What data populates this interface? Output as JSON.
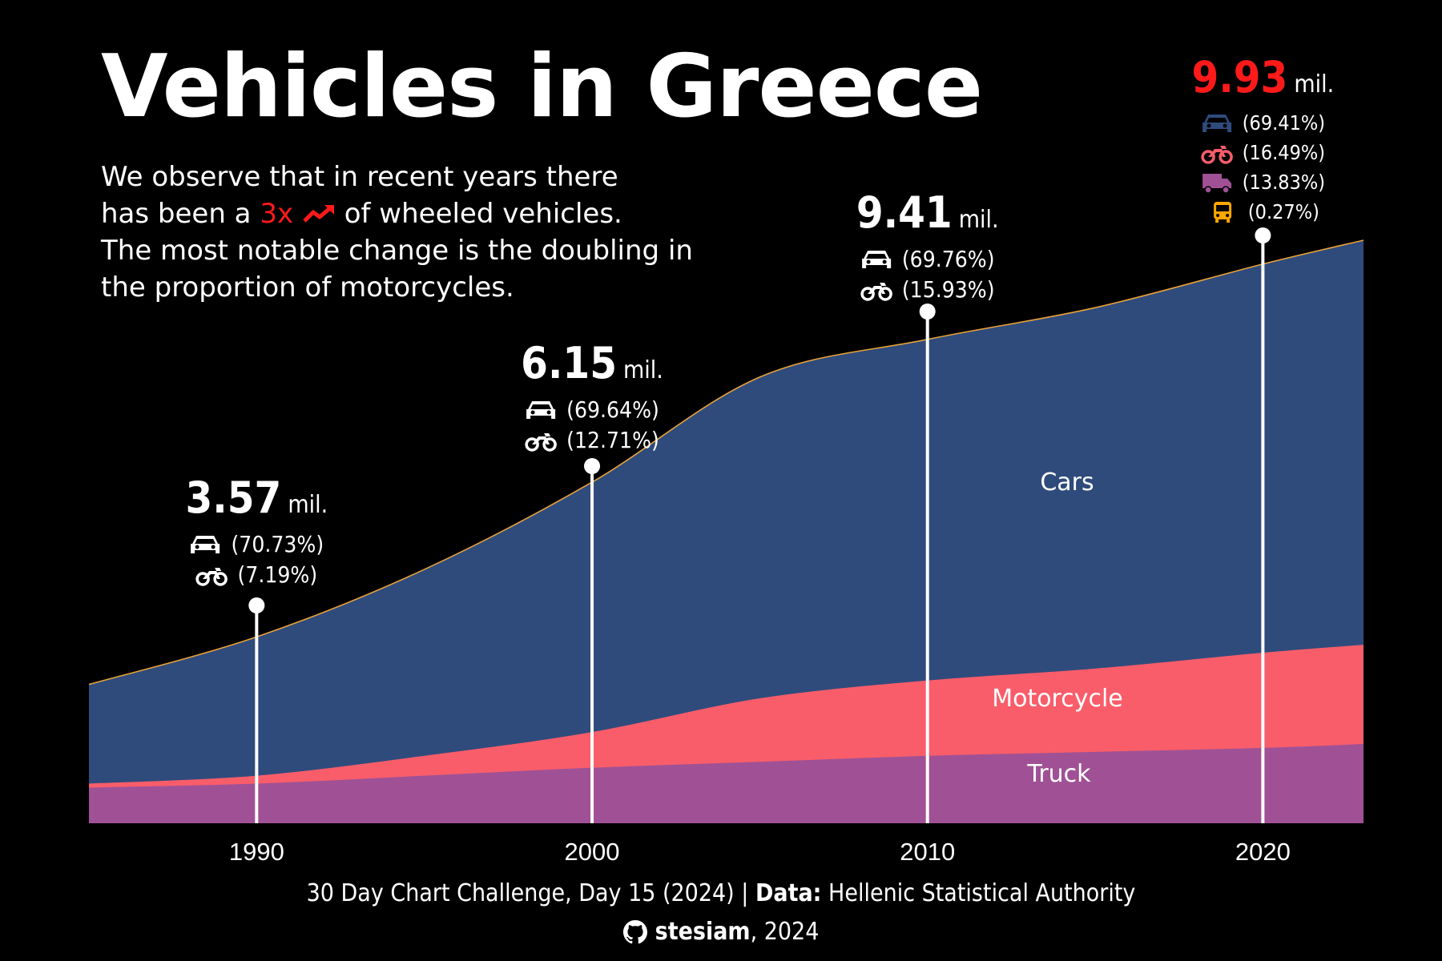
{
  "title": "Vehicles in Greece",
  "subtitle": {
    "line1": "We observe that in recent years there",
    "line2_pre": "has been a ",
    "line2_highlight": "3x",
    "line2_post": " of wheeled vehicles.",
    "line3": "The most notable change is the doubling in",
    "line4": "the proportion of motorcycles."
  },
  "colors": {
    "cars": "#2f4b7c",
    "motorcycle": "#f95d6a",
    "truck": "#a05195",
    "bus": "#ffa600",
    "outline": "#e8a33a",
    "highlight": "#ff1a1a"
  },
  "callouts": [
    {
      "year": 1990,
      "total": "3.57",
      "unit": "mil.",
      "cars": "(70.73%)",
      "moto": "(7.19%)"
    },
    {
      "year": 2000,
      "total": "6.15",
      "unit": "mil.",
      "cars": "(69.64%)",
      "moto": "(12.71%)"
    },
    {
      "year": 2010,
      "total": "9.41",
      "unit": "mil.",
      "cars": "(69.76%)",
      "moto": "(15.93%)"
    },
    {
      "year": 2020,
      "total": "9.93",
      "unit": "mil.",
      "cars": "(69.41%)",
      "moto": "(16.49%)",
      "truck": "(13.83%)",
      "bus": "(0.27%)"
    }
  ],
  "chart_data": {
    "type": "area",
    "x": [
      1985,
      1990,
      1995,
      2000,
      2005,
      2010,
      2015,
      2020,
      2023
    ],
    "xlim": [
      1985,
      2023
    ],
    "ylim": [
      0,
      14.7
    ],
    "xticks": [
      "1990",
      "2000",
      "2010",
      "2020"
    ],
    "series": [
      {
        "name": "Truck",
        "values": [
          0.9,
          1.0,
          1.2,
          1.4,
          1.55,
          1.7,
          1.8,
          1.9,
          2.0
        ]
      },
      {
        "name": "Motorcycle",
        "values": [
          0.1,
          0.2,
          0.5,
          0.9,
          1.6,
          1.9,
          2.1,
          2.4,
          2.5
        ]
      },
      {
        "name": "Cars",
        "values": [
          2.5,
          3.5,
          4.7,
          6.3,
          8.1,
          8.6,
          9.1,
          9.8,
          10.2
        ]
      }
    ],
    "series_labels": [
      "Cars",
      "Motorcycle",
      "Truck"
    ]
  },
  "caption": {
    "pre": "30 Day Chart Challenge, Day 15 (2024) |  ",
    "data_label": "Data:",
    "source": " Hellenic Statistical Authority"
  },
  "credit": {
    "handle": "stesiam",
    "year": ", 2024"
  }
}
